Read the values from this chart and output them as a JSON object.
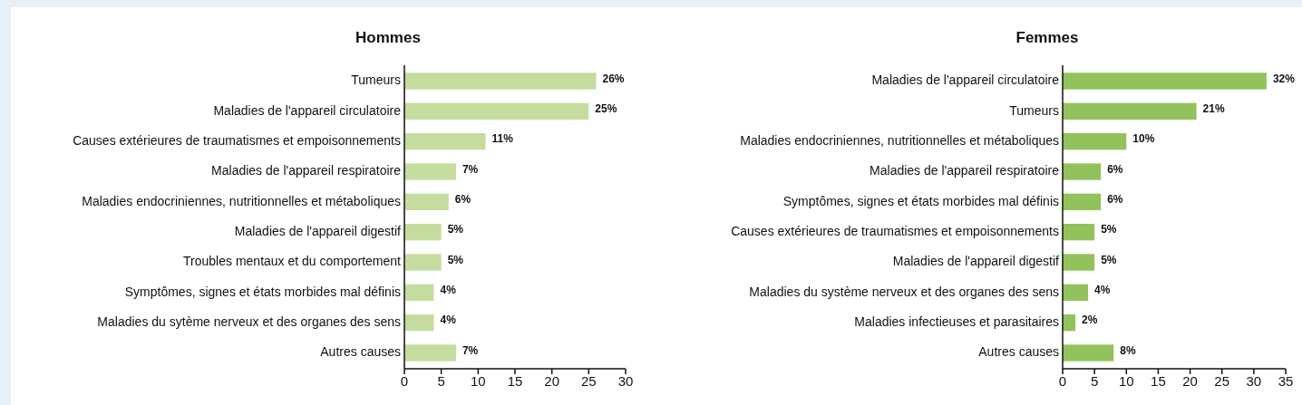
{
  "chart_data": [
    {
      "type": "bar",
      "orientation": "horizontal",
      "title": "Hommes",
      "categories": [
        "Tumeurs",
        "Maladies de l'appareil circulatoire",
        "Causes extérieures de traumatismes et empoisonnements",
        "Maladies de l'appareil respiratoire",
        "Maladies endocriniennes, nutritionnelles et métaboliques",
        "Maladies de l'appareil digestif",
        "Troubles mentaux et du comportement",
        "Symptômes, signes et états morbides mal définis",
        "Maladies du sytème nerveux et des organes des sens",
        "Autres causes"
      ],
      "values": [
        26,
        25,
        11,
        7,
        6,
        5,
        5,
        4,
        4,
        7
      ],
      "value_labels": [
        "26%",
        "25%",
        "11%",
        "7%",
        "6%",
        "5%",
        "5%",
        "4%",
        "4%",
        "7%"
      ],
      "color": "#c4dd9f",
      "xlim": [
        0,
        30
      ],
      "xticks": [
        0,
        5,
        10,
        15,
        20,
        25,
        30
      ]
    },
    {
      "type": "bar",
      "orientation": "horizontal",
      "title": "Femmes",
      "categories": [
        "Maladies de l'appareil circulatoire",
        "Tumeurs",
        "Maladies endocriniennes, nutritionnelles et métaboliques",
        "Maladies de l'appareil respiratoire",
        "Symptômes, signes et états morbides mal définis",
        "Causes extérieures de traumatismes et empoisonnements",
        "Maladies de l'appareil digestif",
        "Maladies du système nerveux et des organes des sens",
        "Maladies infectieuses et parasitaires",
        "Autres causes"
      ],
      "values": [
        32,
        21,
        10,
        6,
        6,
        5,
        5,
        4,
        2,
        8
      ],
      "value_labels": [
        "32%",
        "21%",
        "10%",
        "6%",
        "6%",
        "5%",
        "5%",
        "4%",
        "2%",
        "8%"
      ],
      "color": "#92c25b",
      "xlim": [
        0,
        35
      ],
      "xticks": [
        0,
        5,
        10,
        15,
        20,
        25,
        30,
        35
      ]
    }
  ]
}
